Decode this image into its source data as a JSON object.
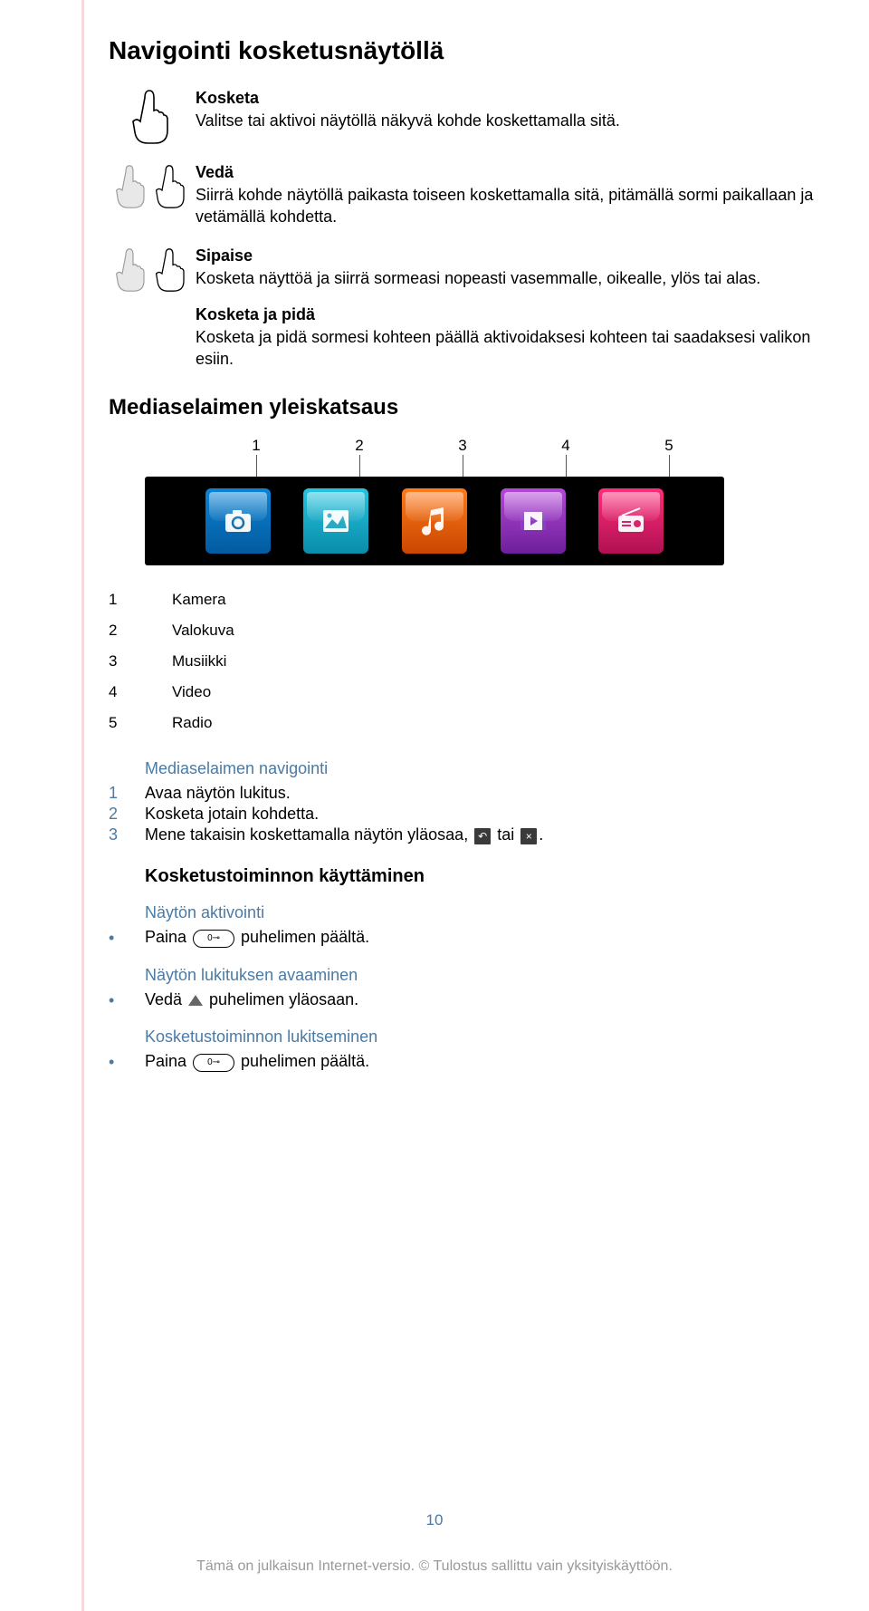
{
  "title": "Navigointi kosketusnäytöllä",
  "gestures": [
    {
      "label": "Kosketa",
      "desc": "Valitse tai aktivoi näytöllä näkyvä kohde koskettamalla sitä."
    },
    {
      "label": "Vedä",
      "desc": "Siirrä kohde näytöllä paikasta toiseen koskettamalla sitä, pitämällä sormi paikallaan ja vetämällä kohdetta."
    },
    {
      "label": "Sipaise",
      "desc": "Kosketa näyttöä ja siirrä sormeasi nopeasti vasemmalle, oikealle, ylös tai alas."
    },
    {
      "label": "Kosketa ja pidä",
      "desc": "Kosketa ja pidä sormesi kohteen päällä aktivoidaksesi kohteen tai saadaksesi valikon esiin."
    }
  ],
  "media_overview_title": "Mediaselaimen yleiskatsaus",
  "media": {
    "labels": [
      "1",
      "2",
      "3",
      "4",
      "5"
    ],
    "tiles": [
      {
        "name": "camera-icon",
        "color1": "#0a84d6",
        "color2": "#045a9e"
      },
      {
        "name": "photo-icon",
        "color1": "#25c4e0",
        "color2": "#0a8ca8"
      },
      {
        "name": "music-icon",
        "color1": "#ff7a1a",
        "color2": "#c94600"
      },
      {
        "name": "video-icon",
        "color1": "#b548d8",
        "color2": "#6d1f9a"
      },
      {
        "name": "radio-icon",
        "color1": "#ff2d7a",
        "color2": "#b01052"
      }
    ],
    "bar_bg": "#000000"
  },
  "legend": [
    {
      "n": "1",
      "label": "Kamera"
    },
    {
      "n": "2",
      "label": "Valokuva"
    },
    {
      "n": "3",
      "label": "Musiikki"
    },
    {
      "n": "4",
      "label": "Video"
    },
    {
      "n": "5",
      "label": "Radio"
    }
  ],
  "nav_heading": "Mediaselaimen navigointi",
  "nav_steps": [
    {
      "n": "1",
      "text": "Avaa näytön lukitus."
    },
    {
      "n": "2",
      "text": "Kosketa jotain kohdetta."
    }
  ],
  "nav_step3": {
    "n": "3",
    "pre": "Mene takaisin koskettamalla näytön yläosaa, ",
    "mid": " tai ",
    "post": "."
  },
  "touch_use_title": "Kosketustoiminnon käyttäminen",
  "activation_heading": "Näytön aktivointi",
  "activation_item": {
    "pre": "Paina ",
    "post": " puhelimen päältä."
  },
  "unlock_heading": "Näytön lukituksen avaaminen",
  "unlock_item": {
    "pre": "Vedä ",
    "post": " puhelimen yläosaan."
  },
  "lock_heading": "Kosketustoiminnon lukitseminen",
  "lock_item": {
    "pre": "Paina ",
    "post": " puhelimen päältä."
  },
  "key_label": "0⊸",
  "page_number": "10",
  "footer": "Tämä on julkaisun Internet-versio. © Tulostus sallittu vain yksityiskäyttöön.",
  "colors": {
    "accent_blue": "#4a7ba6",
    "footer_grey": "#999999"
  }
}
